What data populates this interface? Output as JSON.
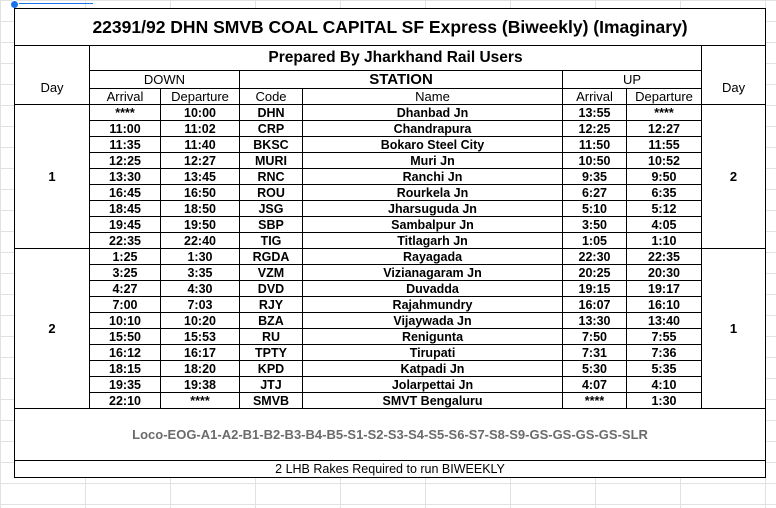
{
  "title": "22391/92 DHN SMVB COAL CAPITAL SF Express (Biweekly) (Imaginary)",
  "prepared_by": "Prepared By Jharkhand Rail Users",
  "headers": {
    "day": "Day",
    "down": "DOWN",
    "station": "STATION",
    "up": "UP",
    "arrival": "Arrival",
    "departure": "Departure",
    "code": "Code",
    "name": "Name"
  },
  "day_groups": [
    {
      "down_day": "1",
      "up_day": "2",
      "rows": 9
    },
    {
      "down_day": "2",
      "up_day": "1",
      "rows": 10
    }
  ],
  "stops": [
    {
      "down_arr": "****",
      "down_dep": "10:00",
      "code": "DHN",
      "name": "Dhanbad Jn",
      "up_arr": "13:55",
      "up_dep": "****"
    },
    {
      "down_arr": "11:00",
      "down_dep": "11:02",
      "code": "CRP",
      "name": "Chandrapura",
      "up_arr": "12:25",
      "up_dep": "12:27"
    },
    {
      "down_arr": "11:35",
      "down_dep": "11:40",
      "code": "BKSC",
      "name": "Bokaro Steel City",
      "up_arr": "11:50",
      "up_dep": "11:55"
    },
    {
      "down_arr": "12:25",
      "down_dep": "12:27",
      "code": "MURI",
      "name": "Muri Jn",
      "up_arr": "10:50",
      "up_dep": "10:52"
    },
    {
      "down_arr": "13:30",
      "down_dep": "13:45",
      "code": "RNC",
      "name": "Ranchi Jn",
      "up_arr": "9:35",
      "up_dep": "9:50"
    },
    {
      "down_arr": "16:45",
      "down_dep": "16:50",
      "code": "ROU",
      "name": "Rourkela Jn",
      "up_arr": "6:27",
      "up_dep": "6:35"
    },
    {
      "down_arr": "18:45",
      "down_dep": "18:50",
      "code": "JSG",
      "name": "Jharsuguda Jn",
      "up_arr": "5:10",
      "up_dep": "5:12"
    },
    {
      "down_arr": "19:45",
      "down_dep": "19:50",
      "code": "SBP",
      "name": "Sambalpur Jn",
      "up_arr": "3:50",
      "up_dep": "4:05"
    },
    {
      "down_arr": "22:35",
      "down_dep": "22:40",
      "code": "TIG",
      "name": "Titlagarh Jn",
      "up_arr": "1:05",
      "up_dep": "1:10"
    },
    {
      "down_arr": "1:25",
      "down_dep": "1:30",
      "code": "RGDA",
      "name": "Rayagada",
      "up_arr": "22:30",
      "up_dep": "22:35"
    },
    {
      "down_arr": "3:25",
      "down_dep": "3:35",
      "code": "VZM",
      "name": "Vizianagaram Jn",
      "up_arr": "20:25",
      "up_dep": "20:30"
    },
    {
      "down_arr": "4:27",
      "down_dep": "4:30",
      "code": "DVD",
      "name": "Duvadda",
      "up_arr": "19:15",
      "up_dep": "19:17"
    },
    {
      "down_arr": "7:00",
      "down_dep": "7:03",
      "code": "RJY",
      "name": "Rajahmundry",
      "up_arr": "16:07",
      "up_dep": "16:10"
    },
    {
      "down_arr": "10:10",
      "down_dep": "10:20",
      "code": "BZA",
      "name": "Vijaywada Jn",
      "up_arr": "13:30",
      "up_dep": "13:40"
    },
    {
      "down_arr": "15:50",
      "down_dep": "15:53",
      "code": "RU",
      "name": "Renigunta",
      "up_arr": "7:50",
      "up_dep": "7:55"
    },
    {
      "down_arr": "16:12",
      "down_dep": "16:17",
      "code": "TPTY",
      "name": "Tirupati",
      "up_arr": "7:31",
      "up_dep": "7:36"
    },
    {
      "down_arr": "18:15",
      "down_dep": "18:20",
      "code": "KPD",
      "name": "Katpadi Jn",
      "up_arr": "5:30",
      "up_dep": "5:35"
    },
    {
      "down_arr": "19:35",
      "down_dep": "19:38",
      "code": "JTJ",
      "name": "Jolarpettai Jn",
      "up_arr": "4:07",
      "up_dep": "4:10"
    },
    {
      "down_arr": "22:10",
      "down_dep": "****",
      "code": "SMVB",
      "name": "SMVT Bengaluru",
      "up_arr": "****",
      "up_dep": "1:30"
    }
  ],
  "loco": "Loco-EOG-A1-A2-B1-B2-B3-B4-B5-S1-S2-S3-S4-S5-S6-S7-S8-S9-GS-GS-GS-GS-SLR",
  "footer": "2 LHB Rakes Required to run BIWEEKLY"
}
